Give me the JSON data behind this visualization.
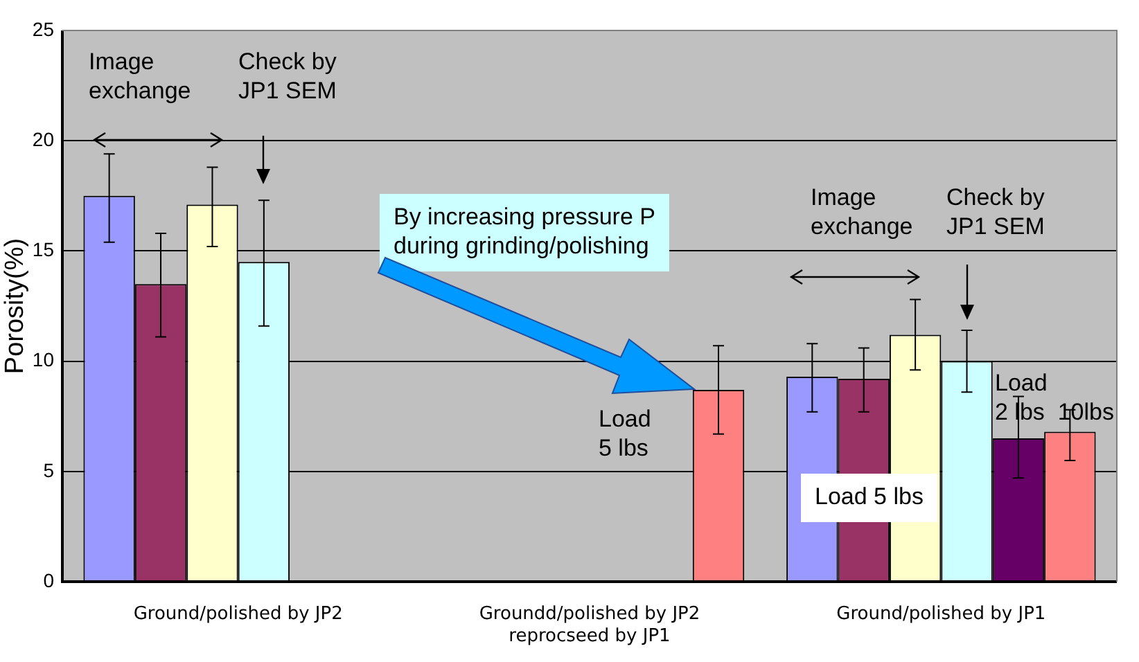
{
  "chart_data": {
    "type": "bar",
    "ylabel": "Porosity(%)",
    "categories": [
      "Ground/polished by JP2",
      "Groundd/polished by JP2\nreprocseed by JP1",
      "Ground/polished by JP1"
    ],
    "series": [
      {
        "color": "#9999ff",
        "values": [
          17.5,
          null,
          9.3
        ],
        "errors": [
          [
            15.4,
            19.4
          ],
          null,
          [
            7.7,
            10.8
          ]
        ]
      },
      {
        "color": "#993366",
        "values": [
          13.5,
          null,
          9.2
        ],
        "errors": [
          [
            11.1,
            15.8
          ],
          null,
          [
            7.7,
            10.6
          ]
        ]
      },
      {
        "color": "#ffffcc",
        "values": [
          17.1,
          null,
          11.2
        ],
        "errors": [
          [
            15.2,
            18.8
          ],
          null,
          [
            9.6,
            12.8
          ]
        ]
      },
      {
        "color": "#ccffff",
        "values": [
          14.5,
          null,
          10.0
        ],
        "errors": [
          [
            11.6,
            17.3
          ],
          null,
          [
            8.6,
            11.4
          ]
        ]
      },
      {
        "color": "#660066",
        "values": [
          null,
          null,
          6.5
        ],
        "errors": [
          null,
          null,
          [
            4.7,
            8.4
          ]
        ]
      },
      {
        "color": "#ff8080",
        "values": [
          null,
          8.7,
          6.8
        ],
        "errors": [
          null,
          [
            6.7,
            10.7
          ],
          [
            5.5,
            7.8
          ]
        ]
      }
    ],
    "ylim": [
      0,
      25
    ],
    "yticks": [
      0,
      5,
      10,
      15,
      20,
      25
    ],
    "grid": "y",
    "legend": false,
    "annotations": [
      "Image\nexchange",
      "Check by\nJP1 SEM",
      "By increasing pressure P\nduring grinding/polishing",
      "Load\n5 lbs",
      "Image\nexchange",
      "Check by\nJP1 SEM",
      "Load\n2 lbs  10lbs",
      "Load 5 lbs"
    ]
  }
}
